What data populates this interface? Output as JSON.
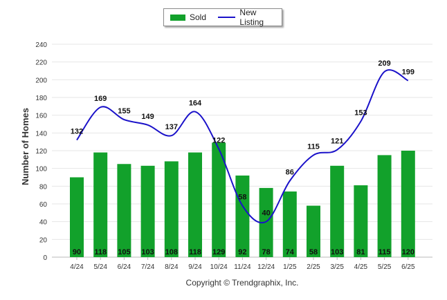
{
  "chart_data": {
    "type": "bar",
    "categories": [
      "4/24",
      "5/24",
      "6/24",
      "7/24",
      "8/24",
      "9/24",
      "10/24",
      "11/24",
      "12/24",
      "1/25",
      "2/25",
      "3/25",
      "4/25",
      "5/25",
      "6/25"
    ],
    "series": [
      {
        "name": "Sold",
        "type": "bar",
        "color": "#12a12b",
        "values": [
          90,
          118,
          105,
          103,
          108,
          118,
          129,
          92,
          78,
          74,
          58,
          103,
          81,
          115,
          120
        ]
      },
      {
        "name": "New Listing",
        "type": "line",
        "color": "#1a11c9",
        "values": [
          132,
          169,
          155,
          149,
          137,
          164,
          122,
          58,
          40,
          86,
          115,
          121,
          153,
          209,
          199
        ]
      }
    ],
    "ylabel": "Number of Homes",
    "xlabel": "",
    "ylim": [
      0,
      240
    ],
    "yticks": [
      0,
      20,
      40,
      60,
      80,
      100,
      120,
      140,
      160,
      180,
      200,
      220,
      240
    ],
    "grid": true,
    "legend_position": "top-center"
  },
  "footer": "Copyright © Trendgraphix, Inc."
}
